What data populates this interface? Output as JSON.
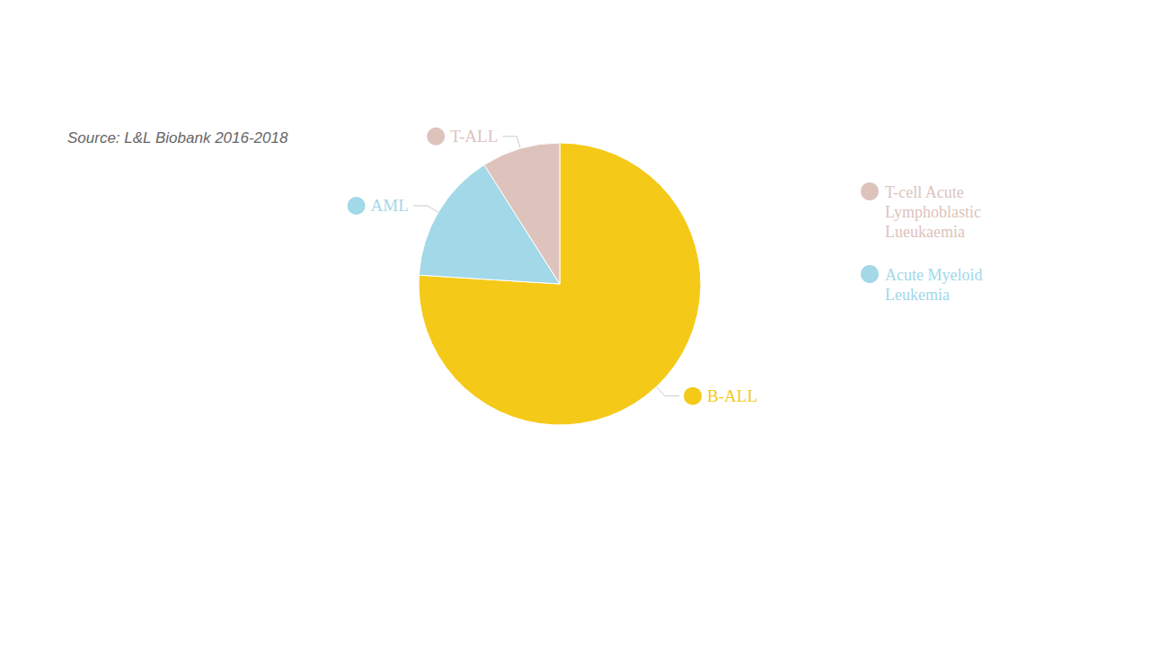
{
  "chart_data": {
    "type": "pie",
    "subtitle": "Source: L&L Biobank 2016-2018",
    "categories": [
      "B-ALL",
      "AML",
      "T-ALL"
    ],
    "values": [
      76,
      15,
      9
    ],
    "colors": [
      "#F5C918",
      "#A2D8E8",
      "#DDC3BC"
    ],
    "annotations": [
      {
        "text": "T-cell Acute\nLymphoblastic\nLueukaemia",
        "color": "#DDC3BC"
      },
      {
        "text": "Acute Myeloid\nLeukemia",
        "color": "#A2D8E8"
      }
    ]
  }
}
